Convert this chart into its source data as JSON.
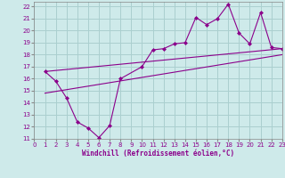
{
  "xlabel": "Windchill (Refroidissement éolien,°C)",
  "bg_color": "#ceeaea",
  "grid_color": "#aacfcf",
  "line_color": "#8b008b",
  "xlim": [
    0,
    23
  ],
  "ylim": [
    11,
    22.4
  ],
  "xticks": [
    0,
    1,
    2,
    3,
    4,
    5,
    6,
    7,
    8,
    9,
    10,
    11,
    12,
    13,
    14,
    15,
    16,
    17,
    18,
    19,
    20,
    21,
    22,
    23
  ],
  "yticks": [
    11,
    12,
    13,
    14,
    15,
    16,
    17,
    18,
    19,
    20,
    21,
    22
  ],
  "line1_x": [
    1,
    2,
    3,
    4,
    5,
    6,
    7,
    8,
    10,
    11,
    12,
    13,
    14,
    15,
    16,
    17,
    18,
    19,
    20,
    21,
    22,
    23
  ],
  "line1_y": [
    16.6,
    15.8,
    14.4,
    12.4,
    11.9,
    11.1,
    12.1,
    16.0,
    17.0,
    18.4,
    18.5,
    18.9,
    19.0,
    21.1,
    20.5,
    21.0,
    22.2,
    19.8,
    18.9,
    21.5,
    18.6,
    18.5
  ],
  "line2_x": [
    1,
    23
  ],
  "line2_y": [
    16.6,
    18.5
  ],
  "line3_x": [
    1,
    23
  ],
  "line3_y": [
    14.8,
    18.0
  ],
  "xlabel_fontsize": 5.5,
  "tick_fontsize": 5
}
